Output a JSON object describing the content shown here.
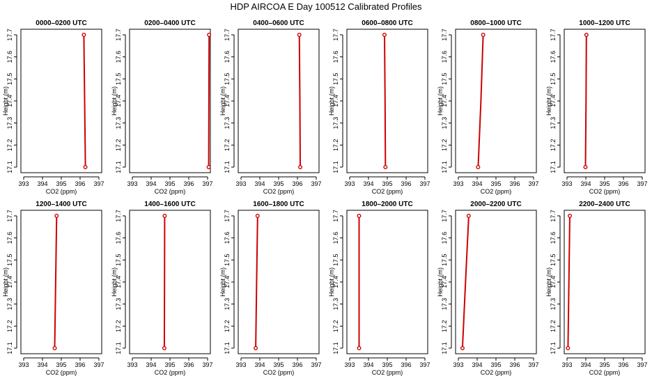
{
  "title": "HDP AIRCOA E  Day 100512  Calibrated Profiles",
  "colors": {
    "line": "#cc0000",
    "axis": "#000000",
    "background": "#ffffff"
  },
  "chart_data": [
    {
      "type": "line",
      "title": "0000–0200 UTC",
      "xlabel": "CO2 (ppm)",
      "ylabel": "Height (m)",
      "xlim": [
        393,
        397
      ],
      "ylim": [
        17.1,
        17.7
      ],
      "xticks": [
        "393",
        "394",
        "395",
        "396",
        "397"
      ],
      "yticks": [
        "17.1",
        "17.2",
        "17.3",
        "17.4",
        "17.5",
        "17.6",
        "17.7"
      ],
      "x": [
        396.2,
        396.24,
        396.28
      ],
      "y": [
        17.7,
        17.4,
        17.1
      ]
    },
    {
      "type": "line",
      "title": "0200–0400 UTC",
      "xlabel": "CO2 (ppm)",
      "ylabel": "Height (m)",
      "xlim": [
        393,
        397
      ],
      "ylim": [
        17.1,
        17.7
      ],
      "xticks": [
        "393",
        "394",
        "395",
        "396",
        "397"
      ],
      "yticks": [
        "17.1",
        "17.2",
        "17.3",
        "17.4",
        "17.5",
        "17.6",
        "17.7"
      ],
      "x": [
        397.08,
        397.07,
        397.06
      ],
      "y": [
        17.7,
        17.4,
        17.1
      ]
    },
    {
      "type": "line",
      "title": "0400–0600 UTC",
      "xlabel": "CO2 (ppm)",
      "ylabel": "Height (m)",
      "xlim": [
        393,
        397
      ],
      "ylim": [
        17.1,
        17.7
      ],
      "xticks": [
        "393",
        "394",
        "395",
        "396",
        "397"
      ],
      "yticks": [
        "17.1",
        "17.2",
        "17.3",
        "17.4",
        "17.5",
        "17.6",
        "17.7"
      ],
      "x": [
        396.1,
        396.13,
        396.15
      ],
      "y": [
        17.7,
        17.4,
        17.1
      ]
    },
    {
      "type": "line",
      "title": "0600–0800 UTC",
      "xlabel": "CO2 (ppm)",
      "ylabel": "Height (m)",
      "xlim": [
        393,
        397
      ],
      "ylim": [
        17.1,
        17.7
      ],
      "xticks": [
        "393",
        "394",
        "395",
        "396",
        "397"
      ],
      "yticks": [
        "17.1",
        "17.2",
        "17.3",
        "17.4",
        "17.5",
        "17.6",
        "17.7"
      ],
      "x": [
        394.85,
        394.88,
        394.9
      ],
      "y": [
        17.7,
        17.4,
        17.1
      ]
    },
    {
      "type": "line",
      "title": "0800–1000 UTC",
      "xlabel": "CO2 (ppm)",
      "ylabel": "Height (m)",
      "xlim": [
        393,
        397
      ],
      "ylim": [
        17.1,
        17.7
      ],
      "xticks": [
        "393",
        "394",
        "395",
        "396",
        "397"
      ],
      "yticks": [
        "17.1",
        "17.2",
        "17.3",
        "17.4",
        "17.5",
        "17.6",
        "17.7"
      ],
      "x": [
        394.32,
        394.2,
        394.05
      ],
      "y": [
        17.7,
        17.4,
        17.1
      ]
    },
    {
      "type": "line",
      "title": "1000–1200 UTC",
      "xlabel": "CO2 (ppm)",
      "ylabel": "Height (m)",
      "xlim": [
        393,
        397
      ],
      "ylim": [
        17.1,
        17.7
      ],
      "xticks": [
        "393",
        "394",
        "395",
        "396",
        "397"
      ],
      "yticks": [
        "17.1",
        "17.2",
        "17.3",
        "17.4",
        "17.5",
        "17.6",
        "17.7"
      ],
      "x": [
        394.03,
        394.01,
        393.98
      ],
      "y": [
        17.7,
        17.4,
        17.1
      ]
    },
    {
      "type": "line",
      "title": "1200–1400 UTC",
      "xlabel": "CO2 (ppm)",
      "ylabel": "Height (m)",
      "xlim": [
        393,
        397
      ],
      "ylim": [
        17.1,
        17.7
      ],
      "xticks": [
        "393",
        "394",
        "395",
        "396",
        "397"
      ],
      "yticks": [
        "17.1",
        "17.2",
        "17.3",
        "17.4",
        "17.5",
        "17.6",
        "17.7"
      ],
      "x": [
        394.75,
        394.7,
        394.65
      ],
      "y": [
        17.7,
        17.4,
        17.1
      ]
    },
    {
      "type": "line",
      "title": "1400–1600 UTC",
      "xlabel": "CO2 (ppm)",
      "ylabel": "Height (m)",
      "xlim": [
        393,
        397
      ],
      "ylim": [
        17.1,
        17.7
      ],
      "xticks": [
        "393",
        "394",
        "395",
        "396",
        "397"
      ],
      "yticks": [
        "17.1",
        "17.2",
        "17.3",
        "17.4",
        "17.5",
        "17.6",
        "17.7"
      ],
      "x": [
        394.72,
        394.71,
        394.7
      ],
      "y": [
        17.7,
        17.4,
        17.1
      ]
    },
    {
      "type": "line",
      "title": "1600–1800 UTC",
      "xlabel": "CO2 (ppm)",
      "ylabel": "Height (m)",
      "xlim": [
        393,
        397
      ],
      "ylim": [
        17.1,
        17.7
      ],
      "xticks": [
        "393",
        "394",
        "395",
        "396",
        "397"
      ],
      "yticks": [
        "17.1",
        "17.2",
        "17.3",
        "17.4",
        "17.5",
        "17.6",
        "17.7"
      ],
      "x": [
        393.88,
        393.83,
        393.78
      ],
      "y": [
        17.7,
        17.4,
        17.1
      ]
    },
    {
      "type": "line",
      "title": "1800–2000 UTC",
      "xlabel": "CO2 (ppm)",
      "ylabel": "Height (m)",
      "xlim": [
        393,
        397
      ],
      "ylim": [
        17.1,
        17.7
      ],
      "xticks": [
        "393",
        "394",
        "395",
        "396",
        "397"
      ],
      "yticks": [
        "17.1",
        "17.2",
        "17.3",
        "17.4",
        "17.5",
        "17.6",
        "17.7"
      ],
      "x": [
        393.5,
        393.5,
        393.5
      ],
      "y": [
        17.7,
        17.4,
        17.1
      ]
    },
    {
      "type": "line",
      "title": "2000–2200 UTC",
      "xlabel": "CO2 (ppm)",
      "ylabel": "Height (m)",
      "xlim": [
        393,
        397
      ],
      "ylim": [
        17.1,
        17.7
      ],
      "xticks": [
        "393",
        "394",
        "395",
        "396",
        "397"
      ],
      "yticks": [
        "17.1",
        "17.2",
        "17.3",
        "17.4",
        "17.5",
        "17.6",
        "17.7"
      ],
      "x": [
        393.55,
        393.38,
        393.22
      ],
      "y": [
        17.7,
        17.4,
        17.1
      ]
    },
    {
      "type": "line",
      "title": "2200–2400 UTC",
      "xlabel": "CO2 (ppm)",
      "ylabel": "Height (m)",
      "xlim": [
        393,
        397
      ],
      "ylim": [
        17.1,
        17.7
      ],
      "xticks": [
        "393",
        "394",
        "395",
        "396",
        "397"
      ],
      "yticks": [
        "17.1",
        "17.2",
        "17.3",
        "17.4",
        "17.5",
        "17.6",
        "17.7"
      ],
      "x": [
        393.15,
        393.1,
        393.05
      ],
      "y": [
        17.7,
        17.4,
        17.1
      ]
    }
  ]
}
